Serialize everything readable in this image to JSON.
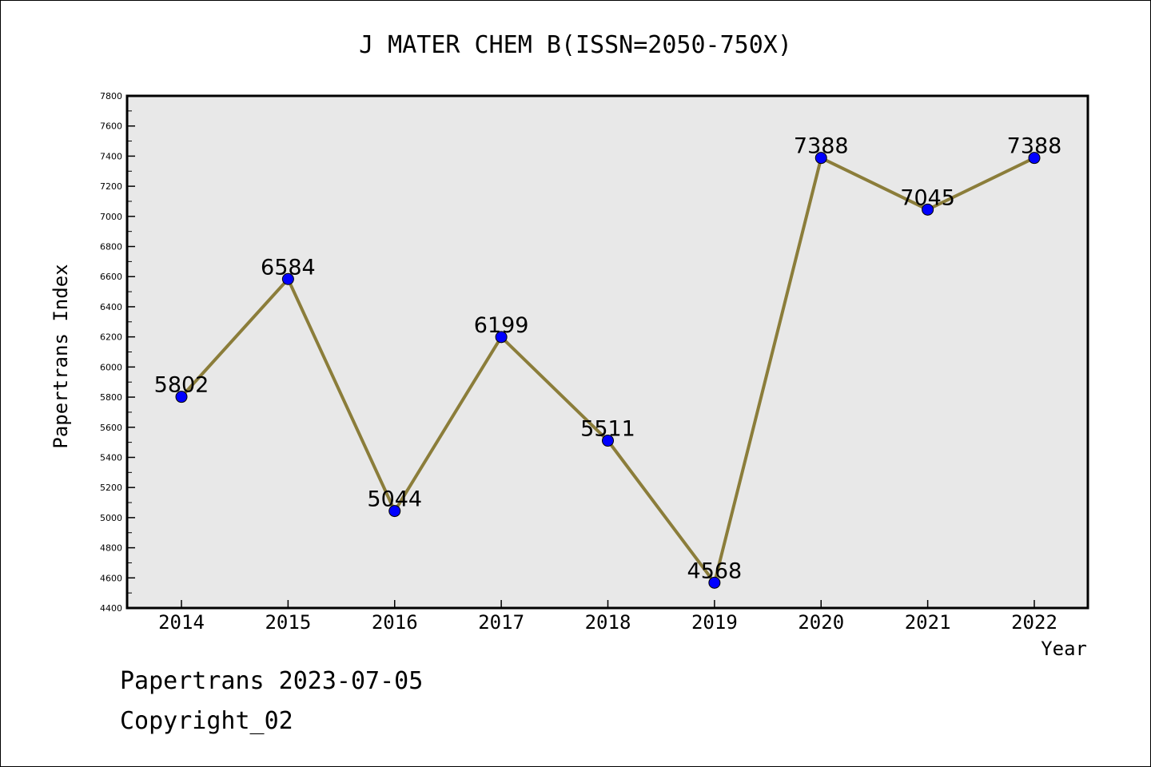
{
  "chart_data": {
    "type": "line",
    "title": "J MATER CHEM B(ISSN=2050-750X)",
    "xlabel": "Year",
    "ylabel": "Papertrans Index",
    "categories": [
      "2014",
      "2015",
      "2016",
      "2017",
      "2018",
      "2019",
      "2020",
      "2021",
      "2022"
    ],
    "series": [
      {
        "values": [
          5802,
          6584,
          5044,
          6199,
          5511,
          4568,
          7388,
          7045,
          7388
        ],
        "line_color": "#8b7d3a",
        "marker_color": "#0000ff"
      }
    ],
    "data_labels": [
      "5802",
      "6584",
      "5044",
      "6199",
      "5511",
      "4568",
      "7388",
      "7045",
      "7388"
    ],
    "ylim": [
      4400,
      7800
    ],
    "ytick_step": 200,
    "ytick_labels": [
      "4400",
      "4600",
      "4800",
      "5000",
      "5200",
      "5400",
      "5600",
      "5800",
      "6000",
      "6200",
      "6400",
      "6600",
      "6800",
      "7000",
      "7200",
      "7400",
      "7600",
      "7800"
    ],
    "grid": false,
    "plot_background": "#e8e8e8"
  },
  "footer": {
    "line1": "Papertrans 2023-07-05",
    "line2": "Copyright_02"
  }
}
